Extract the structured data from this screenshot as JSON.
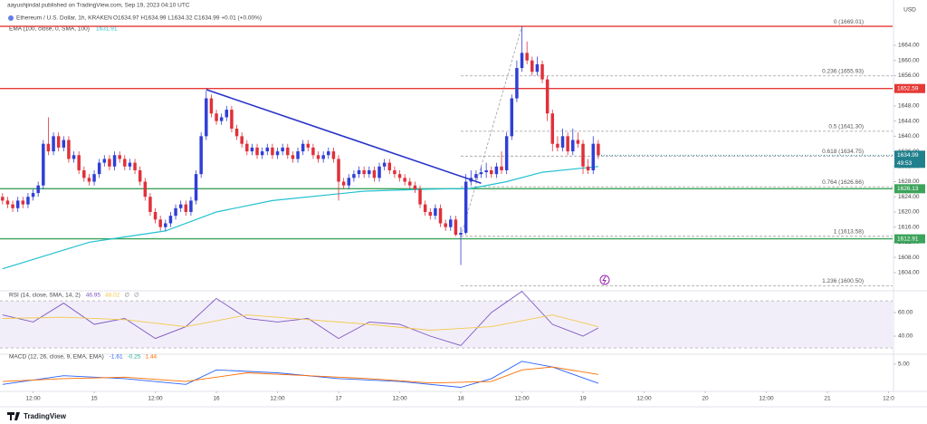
{
  "header": {
    "publisher": "aayushjindal published on TradingView.com, Sep 19, 2023 04:10 UTC",
    "symbol": "Ethereum / U.S. Dollar, 1h, KRAKEN",
    "ohlc": "O1634.97 H1634.99 L1634.32 C1634.99 +0.01 (+0.00%)",
    "ema_legend": "EMA (100, close, 0, SMA, 100)",
    "ema_value": "1631.91"
  },
  "footer": "TradingView",
  "chart_data": [
    {
      "type": "candlestick",
      "currency": "USD",
      "up_color": "#2f3fd6",
      "down_color": "#e0303a",
      "open": [
        1624,
        1623,
        1622,
        1621,
        1623,
        1622,
        1624,
        1625,
        1627,
        1638,
        1636,
        1640,
        1637,
        1639,
        1634,
        1635,
        1631,
        1629,
        1628,
        1630,
        1633,
        1634,
        1632,
        1635,
        1634,
        1632,
        1633,
        1631,
        1628,
        1624,
        1620,
        1618,
        1616,
        1617,
        1619,
        1621,
        1622,
        1620,
        1623,
        1630,
        1640,
        1650,
        1646,
        1644,
        1645,
        1647,
        1642,
        1640,
        1638,
        1636,
        1637,
        1635,
        1636,
        1637,
        1635,
        1636,
        1637,
        1635,
        1634,
        1636,
        1638,
        1637,
        1635,
        1634,
        1635,
        1636,
        1634,
        1628,
        1627,
        1629,
        1630,
        1631,
        1630,
        1631,
        1629,
        1632,
        1633,
        1631,
        1630,
        1629,
        1628,
        1627,
        1626,
        1622,
        1620,
        1619,
        1621,
        1617,
        1616,
        1618,
        1614,
        1614.5,
        1628,
        1629,
        1630,
        1630.5,
        1631,
        1630,
        1632,
        1631,
        1640,
        1650,
        1658,
        1662,
        1660,
        1657,
        1659,
        1655,
        1646,
        1638,
        1637,
        1640,
        1636,
        1639,
        1638,
        1632,
        1631,
        1638
      ],
      "high": [
        1625,
        1624,
        1623,
        1624,
        1624,
        1625,
        1626,
        1628,
        1639,
        1645,
        1641,
        1641,
        1640,
        1640,
        1636,
        1636,
        1632,
        1630,
        1631,
        1634,
        1635,
        1635,
        1636,
        1636,
        1635,
        1634,
        1634,
        1632,
        1629,
        1625,
        1621,
        1619,
        1618,
        1620,
        1622,
        1623,
        1623,
        1624,
        1631,
        1641,
        1652,
        1651,
        1647,
        1646,
        1648,
        1648,
        1643,
        1641,
        1639,
        1638,
        1638,
        1637,
        1638,
        1638,
        1637,
        1638,
        1638,
        1636,
        1637,
        1639,
        1639,
        1638,
        1636,
        1636,
        1637,
        1637,
        1635,
        1629,
        1630,
        1631,
        1632,
        1632,
        1632,
        1632,
        1633,
        1634,
        1634,
        1632,
        1631,
        1630,
        1629,
        1628,
        1627,
        1623,
        1621,
        1622,
        1622,
        1618,
        1619,
        1619,
        1616,
        1630,
        1631,
        1631,
        1632,
        1633,
        1632,
        1633,
        1636,
        1641,
        1651,
        1660,
        1669.01,
        1665,
        1661,
        1661,
        1660,
        1656,
        1647,
        1640,
        1642,
        1641,
        1642,
        1641,
        1639,
        1634,
        1640,
        1639
      ],
      "low": [
        1622,
        1621,
        1620,
        1620,
        1621,
        1621,
        1623,
        1624,
        1626,
        1635,
        1635,
        1636,
        1636,
        1633,
        1633,
        1630,
        1628,
        1627,
        1627,
        1629,
        1632,
        1631,
        1631,
        1633,
        1631,
        1631,
        1630,
        1627,
        1623,
        1619,
        1617,
        1615,
        1615,
        1616,
        1618,
        1620,
        1619,
        1619,
        1622,
        1629,
        1639,
        1645,
        1643,
        1643,
        1644,
        1641,
        1639,
        1637,
        1635,
        1635,
        1634,
        1634,
        1635,
        1634,
        1634,
        1635,
        1634,
        1633,
        1633,
        1635,
        1636,
        1634,
        1633,
        1633,
        1634,
        1633,
        1623,
        1626,
        1626,
        1628,
        1629,
        1629,
        1629,
        1628,
        1628,
        1631,
        1630,
        1629,
        1628,
        1627,
        1626,
        1625,
        1621,
        1619,
        1618,
        1618,
        1616,
        1615,
        1615,
        1613.58,
        1606,
        1614,
        1627,
        1628,
        1629,
        1629,
        1629,
        1629,
        1630,
        1630,
        1639,
        1649,
        1657,
        1659,
        1656,
        1656,
        1654,
        1644,
        1636,
        1636,
        1636,
        1635,
        1635,
        1637,
        1630,
        1630,
        1630,
        1634
      ],
      "close": [
        1623,
        1622,
        1621,
        1623,
        1622,
        1624,
        1625,
        1627,
        1638,
        1636,
        1640,
        1637,
        1639,
        1634,
        1635,
        1631,
        1629,
        1628,
        1630,
        1633,
        1634,
        1632,
        1635,
        1634,
        1632,
        1633,
        1631,
        1628,
        1624,
        1620,
        1618,
        1616,
        1617,
        1619,
        1621,
        1622,
        1620,
        1623,
        1630,
        1640,
        1650,
        1646,
        1644,
        1645,
        1647,
        1642,
        1640,
        1638,
        1636,
        1637,
        1635,
        1636,
        1637,
        1635,
        1636,
        1637,
        1635,
        1634,
        1636,
        1638,
        1637,
        1635,
        1634,
        1635,
        1636,
        1634,
        1628,
        1627,
        1629,
        1630,
        1631,
        1630,
        1631,
        1629,
        1632,
        1633,
        1631,
        1630,
        1629,
        1628,
        1627,
        1626,
        1622,
        1620,
        1619,
        1621,
        1617,
        1616,
        1618,
        1614,
        1614.5,
        1628,
        1629,
        1630,
        1630.5,
        1631,
        1630,
        1632,
        1631,
        1640,
        1650,
        1658,
        1662,
        1660,
        1657,
        1659,
        1655,
        1646,
        1638,
        1637,
        1640,
        1636,
        1639,
        1638,
        1632,
        1631,
        1638,
        1634.99
      ],
      "countdown": "49:53",
      "last_color": "#21808d",
      "xlim": [
        -0.5,
        174.8
      ],
      "xticks": [
        {
          "value": 6,
          "label": "12:00"
        },
        {
          "value": 18,
          "label": "15"
        },
        {
          "value": 30,
          "label": "12:00"
        },
        {
          "value": 42,
          "label": "16"
        },
        {
          "value": 54,
          "label": "12:00"
        },
        {
          "value": 66,
          "label": "17"
        },
        {
          "value": 78,
          "label": "12:00"
        },
        {
          "value": 90,
          "label": "18"
        },
        {
          "value": 102,
          "label": "12:00"
        },
        {
          "value": 114,
          "label": "19"
        },
        {
          "value": 126,
          "label": "12:00"
        },
        {
          "value": 138,
          "label": "20"
        },
        {
          "value": 150,
          "label": "12:00"
        },
        {
          "value": 162,
          "label": "21"
        },
        {
          "value": 174,
          "label": "12:0"
        }
      ],
      "ylim": [
        1599.9,
        1675.96
      ],
      "yticks": [
        {
          "value": 1604,
          "label": "1604.00"
        },
        {
          "value": 1608,
          "label": "1608.00"
        },
        {
          "value": 1612,
          "label": "1612.00"
        },
        {
          "value": 1616,
          "label": "1616.00"
        },
        {
          "value": 1620,
          "label": "1620.00"
        },
        {
          "value": 1624,
          "label": "1624.00"
        },
        {
          "value": 1628,
          "label": "1628.00"
        },
        {
          "value": 1632,
          "label": "1632.00"
        },
        {
          "value": 1636,
          "label": "1636.00"
        },
        {
          "value": 1640,
          "label": "1640.00"
        },
        {
          "value": 1644,
          "label": "1644.00"
        },
        {
          "value": 1648,
          "label": "1648.00"
        },
        {
          "value": 1652,
          "label": "1652.00"
        },
        {
          "value": 1656,
          "label": "1656.00"
        },
        {
          "value": 1660,
          "label": "1660.00"
        },
        {
          "value": 1664,
          "label": "1664.00"
        }
      ],
      "ema": {
        "color": "#22c1d0",
        "x": [
          0,
          17,
          32,
          42,
          53,
          71,
          83,
          92,
          99,
          106,
          117
        ],
        "values": [
          1605,
          1612,
          1615,
          1620,
          1623,
          1625.5,
          1626,
          1626.2,
          1628,
          1630.5,
          1632
        ]
      },
      "trendline": {
        "color": "#2a35c9",
        "x": [
          40,
          94
        ],
        "values": [
          1652.3,
          1627.6
        ]
      },
      "hlines": [
        {
          "value": 1669.01,
          "color": "#e53935",
          "axis_label": false
        },
        {
          "value": 1652.59,
          "color": "#e53935",
          "axis_label": true
        },
        {
          "value": 1626.13,
          "color": "#3ca35a",
          "axis_label": true
        },
        {
          "value": 1612.91,
          "color": "#3ca35a",
          "axis_label": true
        }
      ],
      "fib": {
        "color": "#9e9e9e",
        "x": [
          90,
          102
        ],
        "levels": [
          {
            "value": 1669.01,
            "label": "0 (1669.01)"
          },
          {
            "value": 1655.93,
            "label": "0.236 (1655.93)"
          },
          {
            "value": 1641.3,
            "label": "0.5 (1641.30)"
          },
          {
            "value": 1634.75,
            "label": "0.618 (1634.75)"
          },
          {
            "value": 1626.66,
            "label": "0.764 (1626.66)"
          },
          {
            "value": 1613.58,
            "label": "1 (1613.58)"
          },
          {
            "value": 1600.5,
            "label": "1.236 (1600.50)"
          }
        ]
      }
    },
    {
      "type": "line",
      "title": "RSI (14, close, SMA, 14, 2)",
      "extra": [
        "∅",
        "∅"
      ],
      "band": [
        30,
        70
      ],
      "band_color": "#7e57c2",
      "ylim": [
        25.4,
        75.4
      ],
      "yticks": [
        {
          "value": 60,
          "label": "60.00"
        },
        {
          "value": 40,
          "label": "40.00"
        }
      ],
      "series": [
        {
          "name": "RSI",
          "color": "#7e57c2",
          "x": [
            0,
            6,
            12,
            18,
            24,
            30,
            36,
            42,
            48,
            54,
            60,
            66,
            72,
            78,
            84,
            90,
            96,
            102,
            108,
            114,
            117
          ],
          "values": [
            58,
            52,
            68,
            50,
            55,
            38,
            48,
            72,
            55,
            52,
            55,
            38,
            52,
            50,
            40,
            32,
            60,
            78,
            50,
            40,
            46.95
          ]
        },
        {
          "name": "SMA",
          "color": "#f2c94c",
          "x": [
            0,
            12,
            24,
            36,
            48,
            60,
            72,
            84,
            96,
            108,
            117
          ],
          "values": [
            55,
            56,
            54,
            48,
            58,
            54,
            50,
            45,
            48,
            58,
            48.02
          ]
        }
      ]
    },
    {
      "type": "line",
      "title": "MACD (12, 26, close, 9, EMA, EMA)",
      "histogram_value": -0.25,
      "ylim": [
        -4.4,
        7.8
      ],
      "yticks": [
        {
          "value": 5,
          "label": "5.00"
        }
      ],
      "series": [
        {
          "name": "MACD",
          "color": "#2962ff",
          "x": [
            0,
            12,
            24,
            36,
            42,
            54,
            66,
            78,
            90,
            96,
            102,
            108,
            117
          ],
          "values": [
            -2,
            1,
            0,
            -2,
            3,
            2,
            0,
            -1,
            -3,
            0,
            6,
            4,
            -1.61
          ]
        },
        {
          "name": "Signal",
          "color": "#ff6d00",
          "x": [
            0,
            12,
            24,
            36,
            48,
            60,
            72,
            84,
            96,
            102,
            108,
            117
          ],
          "values": [
            -1,
            0,
            0.5,
            -1,
            2,
            1,
            0,
            -1.5,
            -1,
            3,
            4,
            1.44
          ]
        }
      ]
    }
  ]
}
